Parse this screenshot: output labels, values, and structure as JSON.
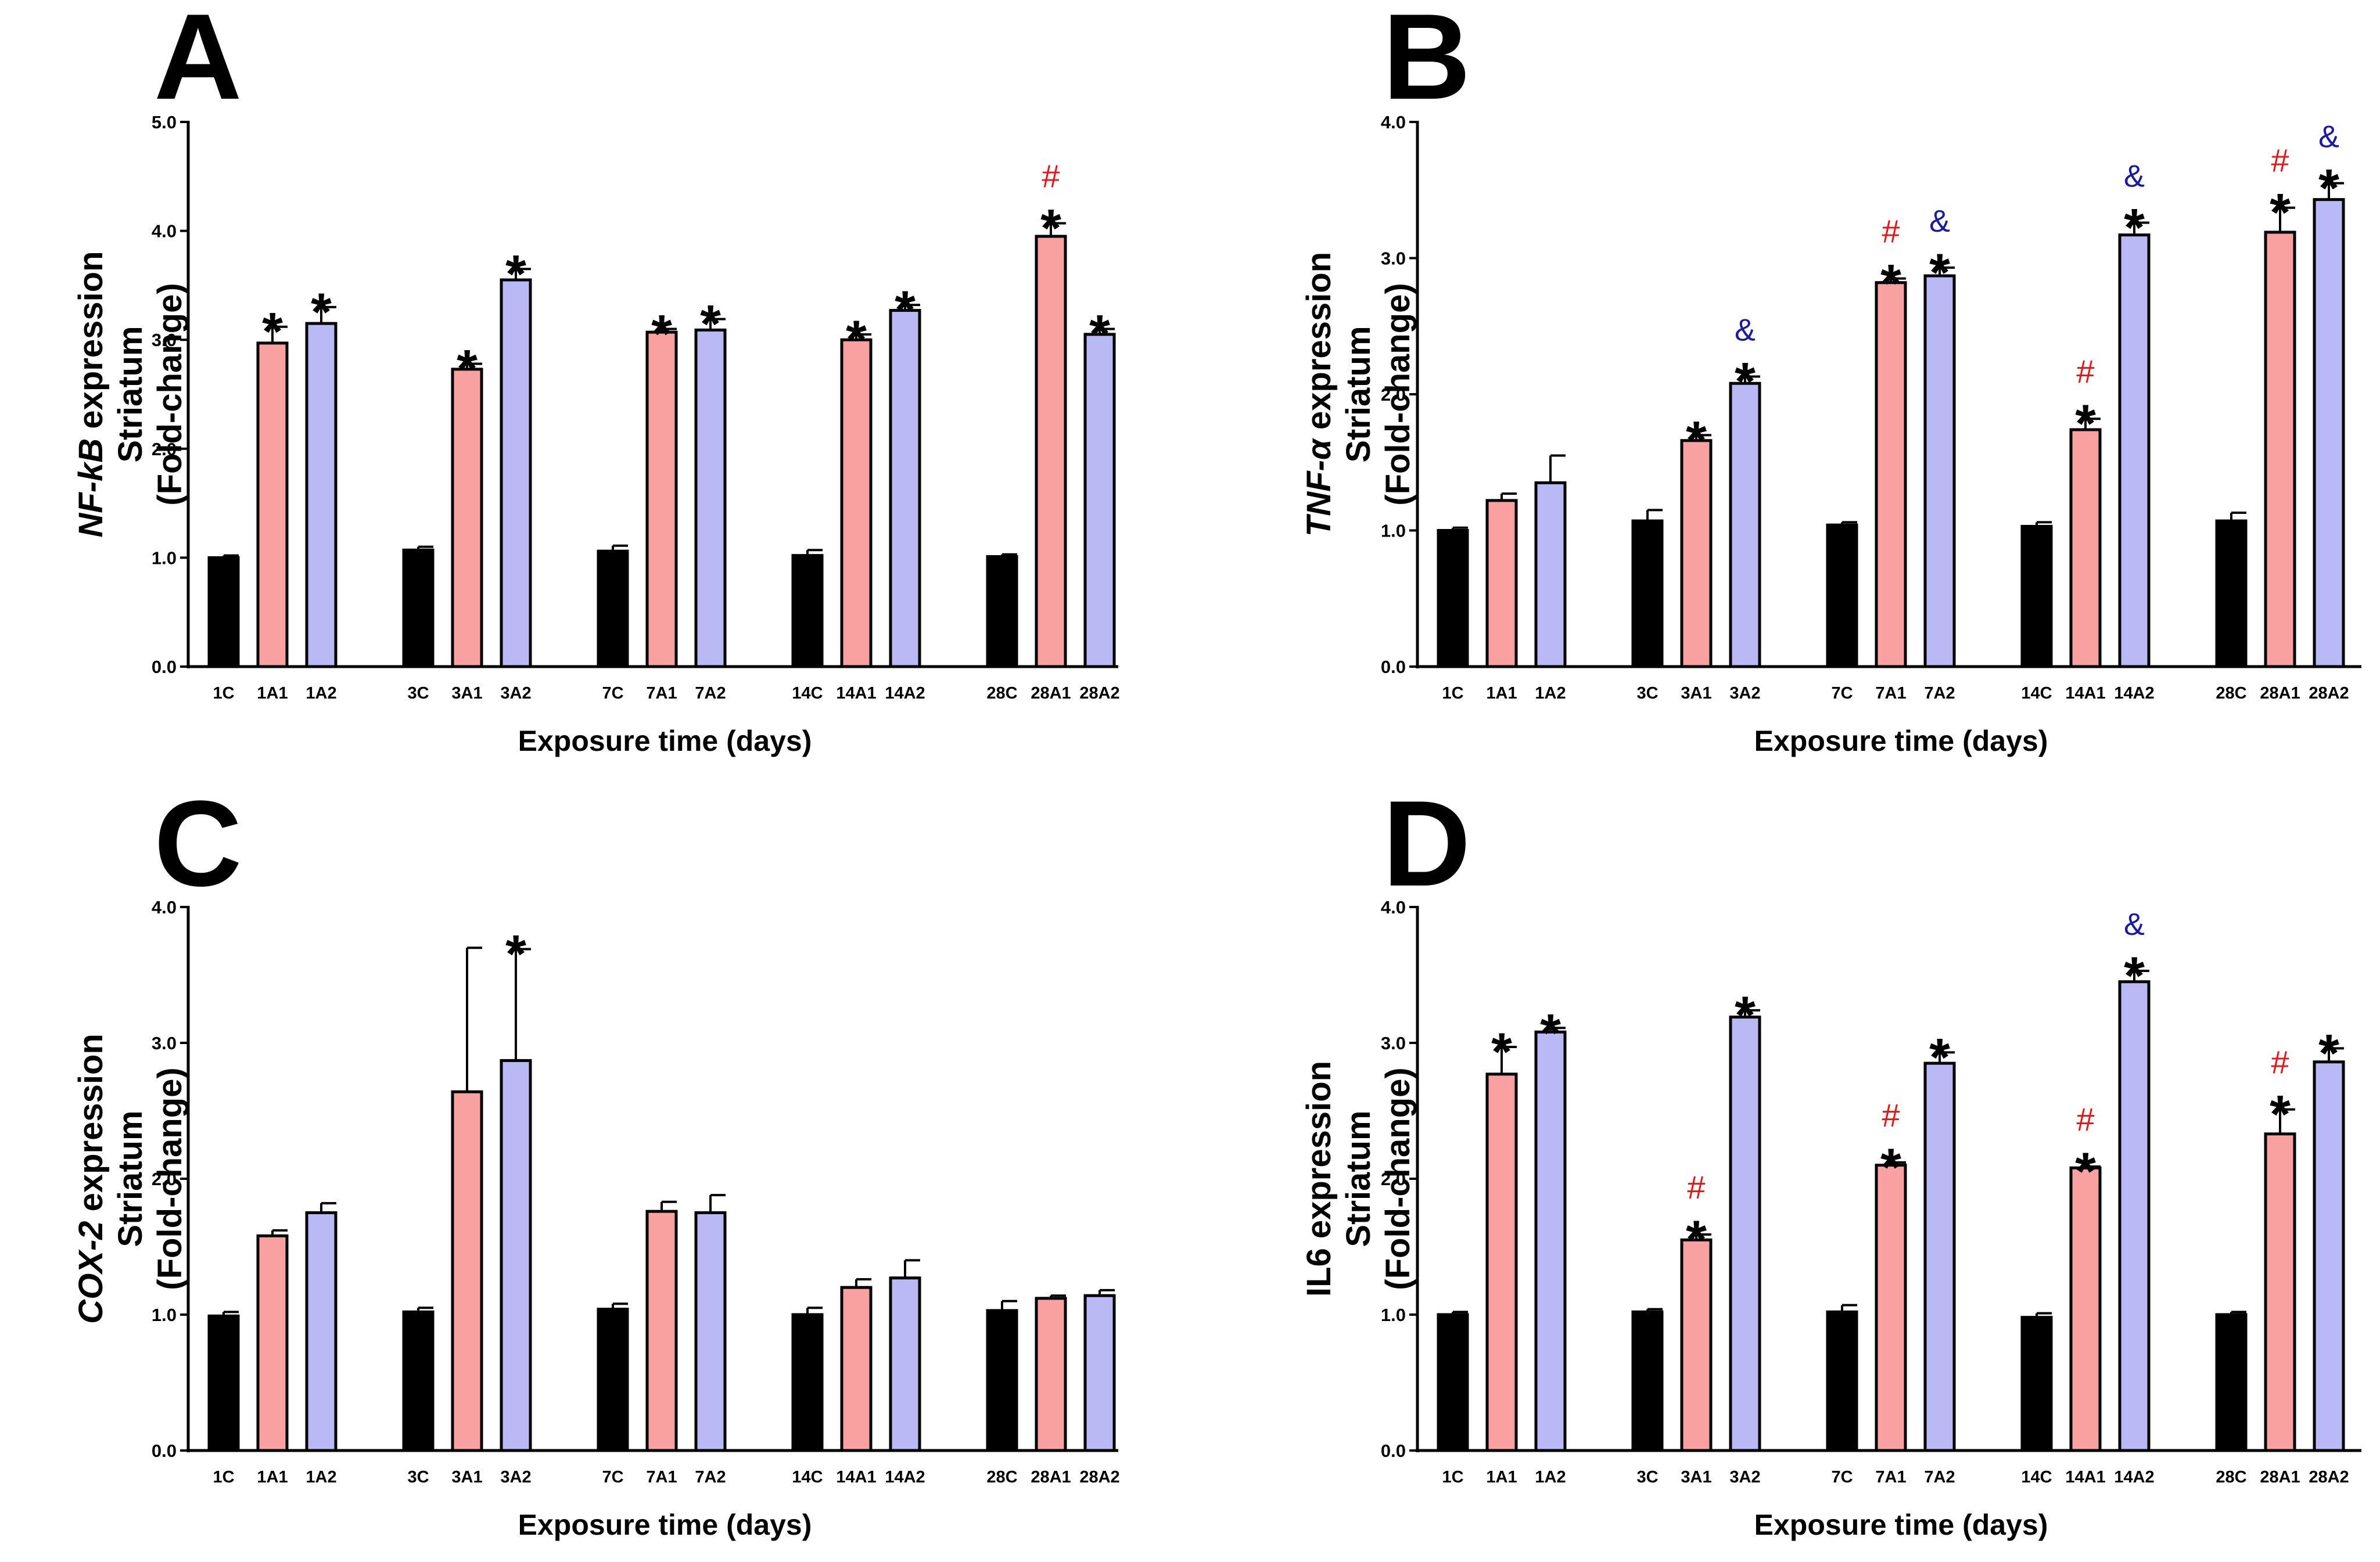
{
  "colors": {
    "control": "#000000",
    "A1": "#f9a0a0",
    "A2": "#b8b9f5",
    "hash": "#ee1111",
    "amp": "#1a1aaa"
  },
  "chart_data": [
    {
      "panel": "A",
      "type": "bar",
      "xlabel": "Exposure time (days)",
      "ylabel_lines": [
        "expression",
        "Striatum",
        "(Fold-change)"
      ],
      "ylabel_gene": "NF-kB",
      "ylabel_gene_italic": true,
      "ylim": [
        0,
        5
      ],
      "yticks": [
        "0.0",
        "1.0",
        "2.0",
        "3.0",
        "4.0",
        "5.0"
      ],
      "groups": [
        {
          "bars": [
            {
              "label": "1C",
              "value": 1.0,
              "err": 0.02,
              "kind": "control",
              "marks": []
            },
            {
              "label": "1A1",
              "value": 2.97,
              "err": 0.15,
              "kind": "A1",
              "marks": [
                "*"
              ]
            },
            {
              "label": "1A2",
              "value": 3.15,
              "err": 0.15,
              "kind": "A2",
              "marks": [
                "*"
              ]
            }
          ]
        },
        {
          "bars": [
            {
              "label": "3C",
              "value": 1.07,
              "err": 0.03,
              "kind": "control",
              "marks": []
            },
            {
              "label": "3A1",
              "value": 2.73,
              "err": 0.05,
              "kind": "A1",
              "marks": [
                "*"
              ]
            },
            {
              "label": "3A2",
              "value": 3.55,
              "err": 0.1,
              "kind": "A2",
              "marks": [
                "*"
              ]
            }
          ]
        },
        {
          "bars": [
            {
              "label": "7C",
              "value": 1.06,
              "err": 0.05,
              "kind": "control",
              "marks": []
            },
            {
              "label": "7A1",
              "value": 3.07,
              "err": 0.03,
              "kind": "A1",
              "marks": [
                "*"
              ]
            },
            {
              "label": "7A2",
              "value": 3.09,
              "err": 0.1,
              "kind": "A2",
              "marks": [
                "*"
              ]
            }
          ]
        },
        {
          "bars": [
            {
              "label": "14C",
              "value": 1.02,
              "err": 0.05,
              "kind": "control",
              "marks": []
            },
            {
              "label": "14A1",
              "value": 3.0,
              "err": 0.05,
              "kind": "A1",
              "marks": [
                "*"
              ]
            },
            {
              "label": "14A2",
              "value": 3.27,
              "err": 0.05,
              "kind": "A2",
              "marks": [
                "*"
              ]
            }
          ]
        },
        {
          "bars": [
            {
              "label": "28C",
              "value": 1.01,
              "err": 0.02,
              "kind": "control",
              "marks": []
            },
            {
              "label": "28A1",
              "value": 3.95,
              "err": 0.12,
              "kind": "A1",
              "marks": [
                "*",
                "#"
              ]
            },
            {
              "label": "28A2",
              "value": 3.05,
              "err": 0.05,
              "kind": "A2",
              "marks": [
                "*"
              ]
            }
          ]
        }
      ]
    },
    {
      "panel": "B",
      "type": "bar",
      "xlabel": "Exposure time (days)",
      "ylabel_lines": [
        "expression",
        "Striatum",
        "(Fold-change)"
      ],
      "ylabel_gene": "TNF-α",
      "ylabel_gene_italic": true,
      "ylim": [
        0,
        4
      ],
      "yticks": [
        "0.0",
        "1.0",
        "2.0",
        "3.0",
        "4.0"
      ],
      "groups": [
        {
          "bars": [
            {
              "label": "1C",
              "value": 1.0,
              "err": 0.02,
              "kind": "control",
              "marks": []
            },
            {
              "label": "1A1",
              "value": 1.22,
              "err": 0.05,
              "kind": "A1",
              "marks": []
            },
            {
              "label": "1A2",
              "value": 1.35,
              "err": 0.2,
              "kind": "A2",
              "marks": []
            }
          ]
        },
        {
          "bars": [
            {
              "label": "3C",
              "value": 1.07,
              "err": 0.08,
              "kind": "control",
              "marks": []
            },
            {
              "label": "3A1",
              "value": 1.66,
              "err": 0.04,
              "kind": "A1",
              "marks": [
                "*"
              ]
            },
            {
              "label": "3A2",
              "value": 2.08,
              "err": 0.05,
              "kind": "A2",
              "marks": [
                "*",
                "&"
              ]
            }
          ]
        },
        {
          "bars": [
            {
              "label": "7C",
              "value": 1.04,
              "err": 0.02,
              "kind": "control",
              "marks": []
            },
            {
              "label": "7A1",
              "value": 2.82,
              "err": 0.03,
              "kind": "A1",
              "marks": [
                "*",
                "#"
              ]
            },
            {
              "label": "7A2",
              "value": 2.87,
              "err": 0.06,
              "kind": "A2",
              "marks": [
                "*",
                "&"
              ]
            }
          ]
        },
        {
          "bars": [
            {
              "label": "14C",
              "value": 1.03,
              "err": 0.03,
              "kind": "control",
              "marks": []
            },
            {
              "label": "14A1",
              "value": 1.74,
              "err": 0.08,
              "kind": "A1",
              "marks": [
                "*",
                "#"
              ]
            },
            {
              "label": "14A2",
              "value": 3.17,
              "err": 0.09,
              "kind": "A2",
              "marks": [
                "*",
                "&"
              ]
            }
          ]
        },
        {
          "bars": [
            {
              "label": "28C",
              "value": 1.07,
              "err": 0.06,
              "kind": "control",
              "marks": []
            },
            {
              "label": "28A1",
              "value": 3.19,
              "err": 0.18,
              "kind": "A1",
              "marks": [
                "*",
                "#"
              ]
            },
            {
              "label": "28A2",
              "value": 3.43,
              "err": 0.12,
              "kind": "A2",
              "marks": [
                "*",
                "&"
              ]
            }
          ]
        }
      ]
    },
    {
      "panel": "C",
      "type": "bar",
      "xlabel": "Exposure time (days)",
      "ylabel_lines": [
        "expression",
        "Striatum",
        "(Fold-change)"
      ],
      "ylabel_gene": "COX-2",
      "ylabel_gene_italic": true,
      "ylim": [
        0,
        4
      ],
      "yticks": [
        "0.0",
        "1.0",
        "2.0",
        "3.0",
        "4.0"
      ],
      "groups": [
        {
          "bars": [
            {
              "label": "1C",
              "value": 0.99,
              "err": 0.03,
              "kind": "control",
              "marks": []
            },
            {
              "label": "1A1",
              "value": 1.58,
              "err": 0.04,
              "kind": "A1",
              "marks": []
            },
            {
              "label": "1A2",
              "value": 1.75,
              "err": 0.07,
              "kind": "A2",
              "marks": []
            }
          ]
        },
        {
          "bars": [
            {
              "label": "3C",
              "value": 1.02,
              "err": 0.03,
              "kind": "control",
              "marks": []
            },
            {
              "label": "3A1",
              "value": 2.64,
              "err": 1.06,
              "kind": "A1",
              "marks": []
            },
            {
              "label": "3A2",
              "value": 2.87,
              "err": 0.82,
              "kind": "A2",
              "marks": [
                "*"
              ]
            }
          ]
        },
        {
          "bars": [
            {
              "label": "7C",
              "value": 1.04,
              "err": 0.04,
              "kind": "control",
              "marks": []
            },
            {
              "label": "7A1",
              "value": 1.76,
              "err": 0.07,
              "kind": "A1",
              "marks": []
            },
            {
              "label": "7A2",
              "value": 1.75,
              "err": 0.13,
              "kind": "A2",
              "marks": []
            }
          ]
        },
        {
          "bars": [
            {
              "label": "14C",
              "value": 1.0,
              "err": 0.05,
              "kind": "control",
              "marks": []
            },
            {
              "label": "14A1",
              "value": 1.2,
              "err": 0.06,
              "kind": "A1",
              "marks": []
            },
            {
              "label": "14A2",
              "value": 1.27,
              "err": 0.13,
              "kind": "A2",
              "marks": []
            }
          ]
        },
        {
          "bars": [
            {
              "label": "28C",
              "value": 1.03,
              "err": 0.07,
              "kind": "control",
              "marks": []
            },
            {
              "label": "28A1",
              "value": 1.12,
              "err": 0.02,
              "kind": "A1",
              "marks": []
            },
            {
              "label": "28A2",
              "value": 1.14,
              "err": 0.04,
              "kind": "A2",
              "marks": []
            }
          ]
        }
      ]
    },
    {
      "panel": "D",
      "type": "bar",
      "xlabel": "Exposure time (days)",
      "ylabel_lines": [
        "IL6 expression",
        "Striatum",
        "(Fold-change)"
      ],
      "ylabel_gene": "",
      "ylabel_gene_italic": false,
      "ylim": [
        0,
        4
      ],
      "yticks": [
        "0.0",
        "1.0",
        "2.0",
        "3.0",
        "4.0"
      ],
      "groups": [
        {
          "bars": [
            {
              "label": "1C",
              "value": 1.0,
              "err": 0.02,
              "kind": "control",
              "marks": []
            },
            {
              "label": "1A1",
              "value": 2.77,
              "err": 0.2,
              "kind": "A1",
              "marks": [
                "*"
              ]
            },
            {
              "label": "1A2",
              "value": 3.08,
              "err": 0.03,
              "kind": "A2",
              "marks": [
                "*"
              ]
            }
          ]
        },
        {
          "bars": [
            {
              "label": "3C",
              "value": 1.02,
              "err": 0.02,
              "kind": "control",
              "marks": []
            },
            {
              "label": "3A1",
              "value": 1.55,
              "err": 0.04,
              "kind": "A1",
              "marks": [
                "*",
                "#"
              ]
            },
            {
              "label": "3A2",
              "value": 3.19,
              "err": 0.05,
              "kind": "A2",
              "marks": [
                "*"
              ]
            }
          ]
        },
        {
          "bars": [
            {
              "label": "7C",
              "value": 1.02,
              "err": 0.05,
              "kind": "control",
              "marks": []
            },
            {
              "label": "7A1",
              "value": 2.1,
              "err": 0.02,
              "kind": "A1",
              "marks": [
                "*",
                "#"
              ]
            },
            {
              "label": "7A2",
              "value": 2.85,
              "err": 0.08,
              "kind": "A2",
              "marks": [
                "*"
              ]
            }
          ]
        },
        {
          "bars": [
            {
              "label": "14C",
              "value": 0.98,
              "err": 0.03,
              "kind": "control",
              "marks": []
            },
            {
              "label": "14A1",
              "value": 2.08,
              "err": 0.01,
              "kind": "A1",
              "marks": [
                "*",
                "#"
              ]
            },
            {
              "label": "14A2",
              "value": 3.45,
              "err": 0.08,
              "kind": "A2",
              "marks": [
                "*",
                "&"
              ]
            }
          ]
        },
        {
          "bars": [
            {
              "label": "28C",
              "value": 1.0,
              "err": 0.02,
              "kind": "control",
              "marks": []
            },
            {
              "label": "28A1",
              "value": 2.33,
              "err": 0.18,
              "kind": "A1",
              "marks": [
                "*",
                "#"
              ]
            },
            {
              "label": "28A2",
              "value": 2.86,
              "err": 0.1,
              "kind": "A2",
              "marks": [
                "*"
              ]
            }
          ]
        }
      ]
    }
  ]
}
